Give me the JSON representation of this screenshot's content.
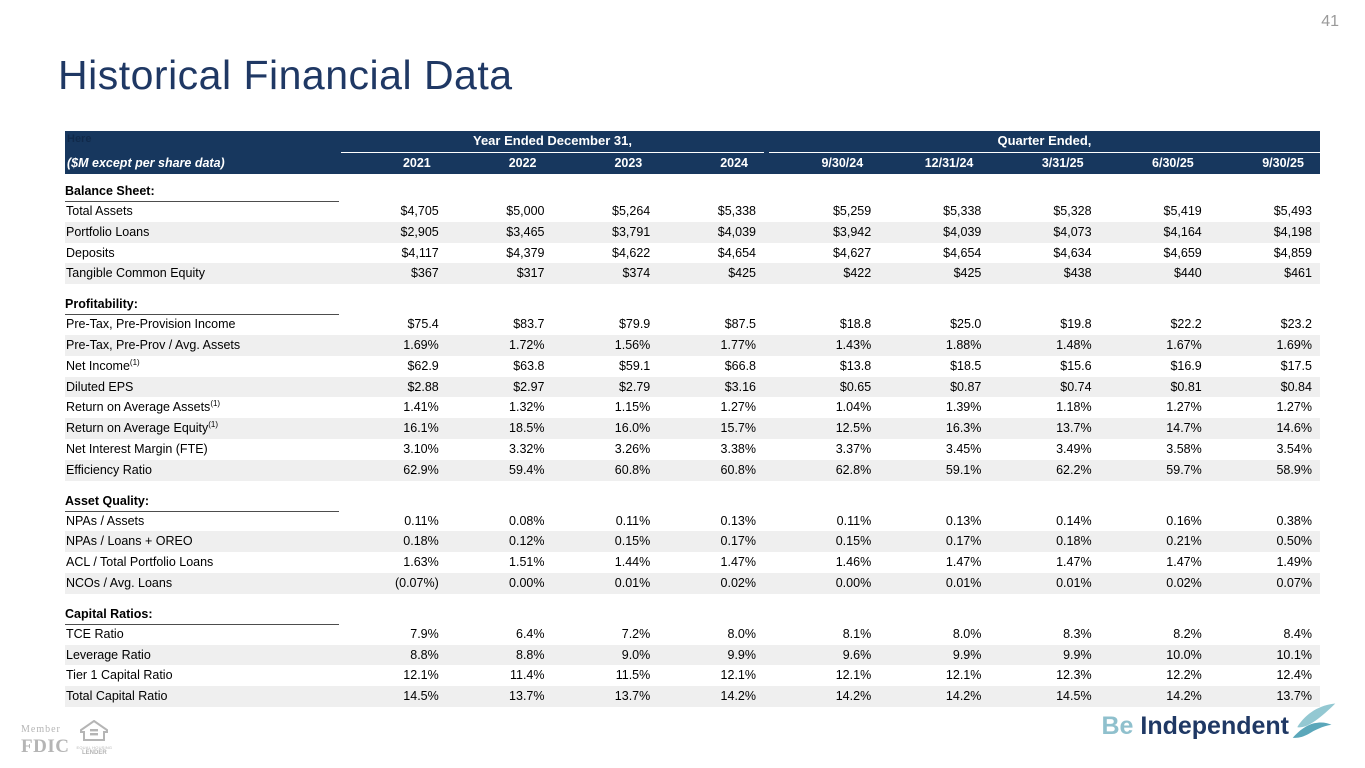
{
  "page_number": "41",
  "title": "Historical Financial Data",
  "table": {
    "hidden_note": "Here",
    "unit_label": "($M except per share data)",
    "group_headers": [
      "Year Ended December 31,",
      "Quarter Ended,"
    ],
    "year_columns": [
      "2021",
      "2022",
      "2023",
      "2024"
    ],
    "quarter_columns": [
      "9/30/24",
      "12/31/24",
      "3/31/25",
      "6/30/25",
      "9/30/25"
    ],
    "sections": [
      {
        "label": "Balance Sheet:",
        "rows": [
          {
            "label": "Total Assets",
            "sup": "",
            "years": [
              "$4,705",
              "$5,000",
              "$5,264",
              "$5,338"
            ],
            "quarters": [
              "$5,259",
              "$5,338",
              "$5,328",
              "$5,419",
              "$5,493"
            ]
          },
          {
            "label": "Portfolio Loans",
            "sup": "",
            "years": [
              "$2,905",
              "$3,465",
              "$3,791",
              "$4,039"
            ],
            "quarters": [
              "$3,942",
              "$4,039",
              "$4,073",
              "$4,164",
              "$4,198"
            ]
          },
          {
            "label": "Deposits",
            "sup": "",
            "years": [
              "$4,117",
              "$4,379",
              "$4,622",
              "$4,654"
            ],
            "quarters": [
              "$4,627",
              "$4,654",
              "$4,634",
              "$4,659",
              "$4,859"
            ]
          },
          {
            "label": "Tangible Common Equity",
            "sup": "",
            "years": [
              "$367",
              "$317",
              "$374",
              "$425"
            ],
            "quarters": [
              "$422",
              "$425",
              "$438",
              "$440",
              "$461"
            ]
          }
        ]
      },
      {
        "label": "Profitability:",
        "rows": [
          {
            "label": "Pre-Tax, Pre-Provision Income",
            "sup": "",
            "years": [
              "$75.4",
              "$83.7",
              "$79.9",
              "$87.5"
            ],
            "quarters": [
              "$18.8",
              "$25.0",
              "$19.8",
              "$22.2",
              "$23.2"
            ]
          },
          {
            "label": "Pre-Tax, Pre-Prov / Avg. Assets",
            "sup": "",
            "years": [
              "1.69%",
              "1.72%",
              "1.56%",
              "1.77%"
            ],
            "quarters": [
              "1.43%",
              "1.88%",
              "1.48%",
              "1.67%",
              "1.69%"
            ]
          },
          {
            "label": "Net Income",
            "sup": "(1)",
            "years": [
              "$62.9",
              "$63.8",
              "$59.1",
              "$66.8"
            ],
            "quarters": [
              "$13.8",
              "$18.5",
              "$15.6",
              "$16.9",
              "$17.5"
            ]
          },
          {
            "label": "Diluted EPS",
            "sup": "",
            "years": [
              "$2.88",
              "$2.97",
              "$2.79",
              "$3.16"
            ],
            "quarters": [
              "$0.65",
              "$0.87",
              "$0.74",
              "$0.81",
              "$0.84"
            ]
          },
          {
            "label": "Return on Average Assets",
            "sup": "(1)",
            "years": [
              "1.41%",
              "1.32%",
              "1.15%",
              "1.27%"
            ],
            "quarters": [
              "1.04%",
              "1.39%",
              "1.18%",
              "1.27%",
              "1.27%"
            ]
          },
          {
            "label": "Return on Average Equity",
            "sup": "(1)",
            "years": [
              "16.1%",
              "18.5%",
              "16.0%",
              "15.7%"
            ],
            "quarters": [
              "12.5%",
              "16.3%",
              "13.7%",
              "14.7%",
              "14.6%"
            ]
          },
          {
            "label": "Net Interest Margin (FTE)",
            "sup": "",
            "years": [
              "3.10%",
              "3.32%",
              "3.26%",
              "3.38%"
            ],
            "quarters": [
              "3.37%",
              "3.45%",
              "3.49%",
              "3.58%",
              "3.54%"
            ]
          },
          {
            "label": "Efficiency Ratio",
            "sup": "",
            "years": [
              "62.9%",
              "59.4%",
              "60.8%",
              "60.8%"
            ],
            "quarters": [
              "62.8%",
              "59.1%",
              "62.2%",
              "59.7%",
              "58.9%"
            ]
          }
        ]
      },
      {
        "label": "Asset Quality:",
        "rows": [
          {
            "label": "NPAs / Assets",
            "sup": "",
            "years": [
              "0.11%",
              "0.08%",
              "0.11%",
              "0.13%"
            ],
            "quarters": [
              "0.11%",
              "0.13%",
              "0.14%",
              "0.16%",
              "0.38%"
            ]
          },
          {
            "label": "NPAs / Loans + OREO",
            "sup": "",
            "years": [
              "0.18%",
              "0.12%",
              "0.15%",
              "0.17%"
            ],
            "quarters": [
              "0.15%",
              "0.17%",
              "0.18%",
              "0.21%",
              "0.50%"
            ]
          },
          {
            "label": "ACL / Total Portfolio Loans",
            "sup": "",
            "years": [
              "1.63%",
              "1.51%",
              "1.44%",
              "1.47%"
            ],
            "quarters": [
              "1.46%",
              "1.47%",
              "1.47%",
              "1.47%",
              "1.49%"
            ]
          },
          {
            "label": "NCOs / Avg. Loans",
            "sup": "",
            "years": [
              "(0.07%)",
              "0.00%",
              "0.01%",
              "0.02%"
            ],
            "quarters": [
              "0.00%",
              "0.01%",
              "0.01%",
              "0.02%",
              "0.07%"
            ]
          }
        ]
      },
      {
        "label": "Capital Ratios:",
        "rows": [
          {
            "label": "TCE Ratio",
            "sup": "",
            "years": [
              "7.9%",
              "6.4%",
              "7.2%",
              "8.0%"
            ],
            "quarters": [
              "8.1%",
              "8.0%",
              "8.3%",
              "8.2%",
              "8.4%"
            ]
          },
          {
            "label": "Leverage Ratio",
            "sup": "",
            "years": [
              "8.8%",
              "8.8%",
              "9.0%",
              "9.9%"
            ],
            "quarters": [
              "9.6%",
              "9.9%",
              "9.9%",
              "10.0%",
              "10.1%"
            ]
          },
          {
            "label": "Tier 1 Capital Ratio",
            "sup": "",
            "years": [
              "12.1%",
              "11.4%",
              "11.5%",
              "12.1%"
            ],
            "quarters": [
              "12.1%",
              "12.1%",
              "12.3%",
              "12.2%",
              "12.4%"
            ]
          },
          {
            "label": "Total Capital Ratio",
            "sup": "",
            "years": [
              "14.5%",
              "13.7%",
              "13.7%",
              "14.2%"
            ],
            "quarters": [
              "14.2%",
              "14.2%",
              "14.5%",
              "14.2%",
              "13.7%"
            ]
          }
        ]
      }
    ]
  },
  "footer": {
    "fdic_member": "Member",
    "fdic_name": "FDIC",
    "ehl_line1": "EQUAL HOUSING",
    "ehl_line2": "LENDER",
    "brand_be": "Be",
    "brand_independent": "Independent"
  },
  "colors": {
    "header_navy": "#17375E",
    "title_navy": "#1F3864",
    "stripe_gray": "#EFEFEF",
    "brand_teal_light": "#8FC0CD",
    "brand_teal": "#5BA7BA",
    "footer_gray": "#B5B5B5"
  }
}
